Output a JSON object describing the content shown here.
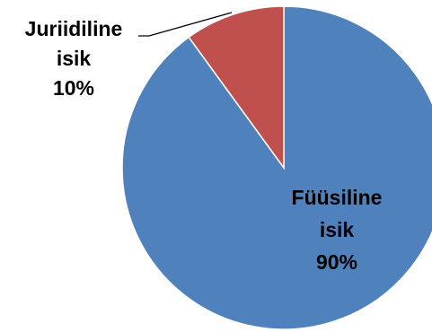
{
  "chart_data": {
    "type": "pie",
    "categories": [
      "Füüsiline isik",
      "Juriidiline isik"
    ],
    "values": [
      90,
      10
    ],
    "colors": [
      "#4F81BD",
      "#C0504D"
    ],
    "data_labels": [
      {
        "lines": [
          "Füüsiline",
          "isik",
          "90%"
        ],
        "placement": "inside"
      },
      {
        "lines": [
          "Juriidiline",
          "isik",
          "10%"
        ],
        "placement": "outside-left-with-leader"
      }
    ],
    "start_angle_deg": 0,
    "direction": "clockwise",
    "legend": "none"
  }
}
